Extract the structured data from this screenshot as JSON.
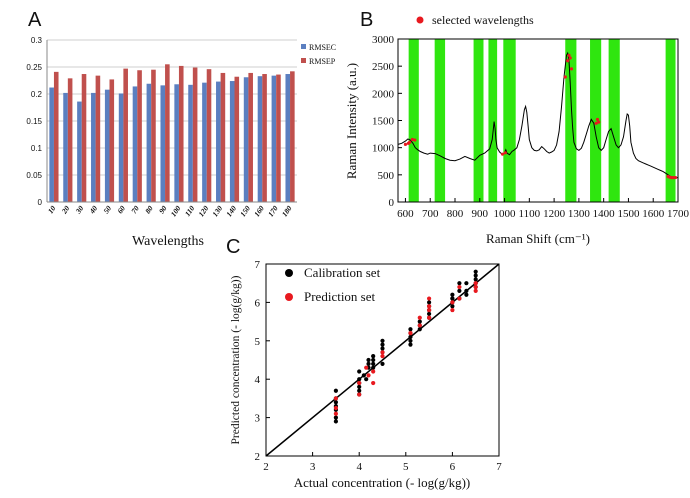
{
  "chart_data": [
    {
      "panel": "A",
      "type": "bar",
      "title": "",
      "xlabel": "Wavelengths",
      "ylabel": "",
      "ylim": [
        0,
        0.3
      ],
      "yticks": [
        "0",
        "0.05",
        "0.1",
        "0.15",
        "0.2",
        "0.25",
        "0.3"
      ],
      "categories": [
        "10",
        "20",
        "30",
        "40",
        "50",
        "60",
        "70",
        "80",
        "90",
        "100",
        "110",
        "120",
        "130",
        "140",
        "150",
        "160",
        "170",
        "180"
      ],
      "series": [
        {
          "name": "RMSEC",
          "color": "#5b7fc0",
          "values": [
            0.212,
            0.202,
            0.186,
            0.202,
            0.208,
            0.201,
            0.214,
            0.219,
            0.216,
            0.218,
            0.217,
            0.221,
            0.223,
            0.224,
            0.231,
            0.233,
            0.234,
            0.237
          ]
        },
        {
          "name": "RMSEP",
          "color": "#c0504d",
          "values": [
            0.241,
            0.229,
            0.237,
            0.234,
            0.227,
            0.247,
            0.244,
            0.245,
            0.255,
            0.252,
            0.249,
            0.246,
            0.239,
            0.232,
            0.239,
            0.237,
            0.236,
            0.242
          ]
        }
      ],
      "legend": "top-right"
    },
    {
      "panel": "B",
      "type": "line",
      "title": "",
      "xlabel": "Raman Shift (cm⁻¹)",
      "ylabel": "Raman Intensity (a.u.)",
      "xlim": [
        570,
        1700
      ],
      "ylim": [
        0,
        3000
      ],
      "xticks": [
        "600",
        "700",
        "800",
        "900",
        "1000",
        "1100",
        "1200",
        "1300",
        "1400",
        "1500",
        "1600",
        "1700"
      ],
      "yticks": [
        "0",
        "500",
        "1000",
        "1500",
        "2000",
        "2500",
        "3000"
      ],
      "legend_label": "selected wavelengths",
      "line_color": "#000000",
      "marker_color": "#e8191f",
      "band_color": "#2fe60f",
      "bands": [
        [
          613,
          654
        ],
        [
          718,
          760
        ],
        [
          875,
          915
        ],
        [
          935,
          970
        ],
        [
          995,
          1045
        ],
        [
          1245,
          1290
        ],
        [
          1345,
          1390
        ],
        [
          1420,
          1465
        ],
        [
          1650,
          1690
        ]
      ],
      "spectrum": {
        "x": [
          570,
          585,
          600,
          610,
          620,
          630,
          640,
          650,
          660,
          675,
          690,
          700,
          720,
          740,
          760,
          780,
          800,
          820,
          840,
          860,
          880,
          900,
          920,
          940,
          950,
          955,
          958,
          962,
          965,
          970,
          980,
          990,
          1000,
          1005,
          1010,
          1020,
          1030,
          1040,
          1050,
          1060,
          1070,
          1080,
          1085,
          1090,
          1095,
          1100,
          1110,
          1120,
          1130,
          1140,
          1150,
          1160,
          1170,
          1180,
          1190,
          1200,
          1210,
          1220,
          1230,
          1240,
          1250,
          1255,
          1260,
          1265,
          1270,
          1275,
          1280,
          1290,
          1300,
          1310,
          1320,
          1330,
          1340,
          1350,
          1360,
          1370,
          1380,
          1390,
          1400,
          1410,
          1420,
          1430,
          1440,
          1450,
          1460,
          1470,
          1480,
          1490,
          1495,
          1500,
          1505,
          1510,
          1520,
          1530,
          1540,
          1550,
          1560,
          1570,
          1580,
          1590,
          1600,
          1610,
          1620,
          1630,
          1640,
          1650,
          1660,
          1670,
          1680,
          1690,
          1700
        ],
        "y": [
          1060,
          1080,
          1120,
          1160,
          1140,
          1080,
          1000,
          960,
          930,
          900,
          880,
          900,
          890,
          850,
          800,
          770,
          760,
          790,
          840,
          800,
          770,
          860,
          900,
          980,
          1150,
          1350,
          1480,
          1350,
          1150,
          1000,
          920,
          880,
          900,
          960,
          900,
          870,
          930,
          960,
          1000,
          1150,
          1400,
          1700,
          1760,
          1650,
          1400,
          1150,
          1000,
          950,
          940,
          960,
          1020,
          980,
          930,
          900,
          920,
          950,
          1050,
          1300,
          1750,
          2300,
          2700,
          2740,
          2600,
          2200,
          1700,
          1350,
          1100,
          980,
          950,
          990,
          1100,
          1250,
          1400,
          1520,
          1450,
          1200,
          1000,
          950,
          1000,
          1150,
          1300,
          1350,
          1200,
          1050,
          1000,
          1050,
          1200,
          1500,
          1620,
          1600,
          1400,
          1100,
          900,
          800,
          760,
          740,
          720,
          700,
          680,
          660,
          640,
          620,
          600,
          580,
          560,
          530,
          500,
          470,
          450,
          450,
          450
        ]
      },
      "selected_points": {
        "x": [
          600,
          612,
          617,
          628,
          638,
          992,
          1003,
          1245,
          1255,
          1260,
          1265,
          1270,
          1370,
          1375,
          1380,
          1660,
          1667,
          1674,
          1681,
          1690
        ],
        "y": [
          1060,
          1080,
          1100,
          1150,
          1140,
          880,
          905,
          2300,
          2600,
          2700,
          2650,
          2450,
          1450,
          1520,
          1470,
          470,
          455,
          448,
          448,
          450
        ]
      },
      "legend": "top-center"
    },
    {
      "panel": "C",
      "type": "scatter",
      "title": "",
      "xlabel": "Actual concentration (- log(g/kg))",
      "ylabel": "Predicted concentration (- log(g/kg))",
      "xlim": [
        2,
        7
      ],
      "ylim": [
        2,
        7
      ],
      "xticks": [
        "2",
        "3",
        "4",
        "5",
        "6",
        "7"
      ],
      "yticks": [
        "2",
        "3",
        "4",
        "5",
        "6",
        "7"
      ],
      "series": [
        {
          "name": "Calibration set",
          "color": "#000000",
          "x": [
            3.5,
            3.5,
            3.5,
            3.5,
            3.5,
            3.5,
            3.5,
            4.0,
            4.0,
            4.0,
            4.0,
            4.0,
            4.0,
            4.1,
            4.15,
            4.2,
            4.2,
            4.2,
            4.3,
            4.3,
            4.3,
            4.3,
            4.5,
            4.5,
            4.5,
            4.5,
            4.5,
            5.1,
            5.1,
            5.1,
            5.1,
            5.1,
            5.3,
            5.3,
            5.3,
            5.5,
            5.5,
            5.5,
            5.5,
            5.5,
            6.0,
            6.0,
            6.0,
            6.0,
            6.0,
            6.15,
            6.15,
            6.15,
            6.3,
            6.3,
            6.3,
            6.5,
            6.5,
            6.5,
            6.5,
            6.5
          ],
          "y": [
            3.7,
            3.5,
            3.3,
            3.2,
            3.0,
            2.9,
            3.4,
            4.2,
            4.0,
            3.9,
            3.8,
            3.7,
            3.6,
            4.1,
            4.0,
            4.5,
            4.4,
            4.3,
            4.6,
            4.5,
            4.4,
            4.3,
            5.0,
            4.9,
            4.8,
            4.7,
            4.4,
            5.3,
            5.2,
            5.1,
            5.0,
            4.9,
            5.5,
            5.4,
            5.3,
            6.0,
            5.9,
            5.8,
            5.7,
            5.6,
            6.2,
            6.1,
            6.0,
            5.9,
            6.1,
            6.5,
            6.3,
            6.1,
            6.5,
            6.3,
            6.2,
            6.8,
            6.7,
            6.6,
            6.5,
            6.4
          ]
        },
        {
          "name": "Prediction set",
          "color": "#e8191f",
          "x": [
            3.5,
            3.5,
            3.5,
            4.0,
            4.0,
            4.15,
            4.2,
            4.3,
            4.3,
            4.5,
            4.5,
            5.1,
            5.3,
            5.3,
            5.5,
            5.5,
            5.5,
            5.5,
            6.0,
            6.0,
            6.15,
            6.15,
            6.5,
            6.5,
            6.5
          ],
          "y": [
            3.5,
            3.25,
            3.1,
            3.9,
            3.6,
            4.3,
            4.1,
            4.2,
            3.9,
            4.7,
            4.6,
            5.2,
            5.6,
            5.4,
            6.1,
            5.9,
            5.8,
            5.6,
            6.0,
            5.8,
            6.4,
            6.1,
            6.5,
            6.3,
            6.4
          ]
        }
      ],
      "fit_line": {
        "x": [
          2,
          7
        ],
        "y": [
          2,
          7
        ]
      },
      "legend": "top-left"
    }
  ],
  "labels": {
    "panel_a": "A",
    "panel_b": "B",
    "panel_c": "C"
  }
}
